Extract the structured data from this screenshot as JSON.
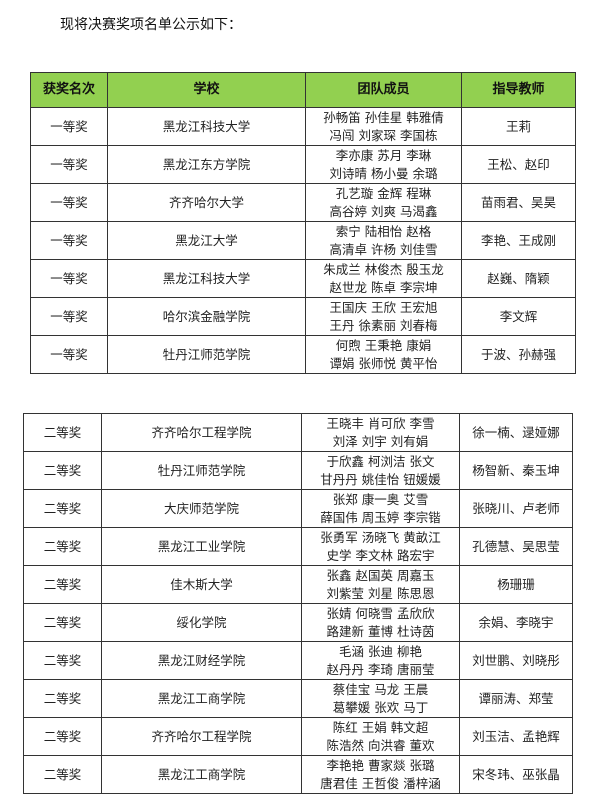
{
  "intro": "现将决赛奖项名单公示如下：",
  "headers": [
    "获奖名次",
    "学校",
    "团队成员",
    "指导教师"
  ],
  "table1": [
    {
      "rank": "一等奖",
      "school": "黑龙江科技大学",
      "members": [
        "孙畅笛 孙佳星 韩雅倩",
        "冯闯 刘家琛 李国栋"
      ],
      "advisor": "王莉"
    },
    {
      "rank": "一等奖",
      "school": "黑龙江东方学院",
      "members": [
        "李亦康 苏月 李琳",
        "刘诗晴 杨小曼 余璐"
      ],
      "advisor": "王松、赵印"
    },
    {
      "rank": "一等奖",
      "school": "齐齐哈尔大学",
      "members": [
        "孔艺璇 金辉 程琳",
        "高谷婷 刘爽 马渴鑫"
      ],
      "advisor": "苗雨君、吴昊"
    },
    {
      "rank": "一等奖",
      "school": "黑龙江大学",
      "members": [
        "索宁 陆相怡 赵格",
        "高清卓 许杨 刘佳雪"
      ],
      "advisor": "李艳、王成刚"
    },
    {
      "rank": "一等奖",
      "school": "黑龙江科技大学",
      "members": [
        "朱成兰 林俊杰 殷玉龙",
        "赵世龙 陈卓 李宗坤"
      ],
      "advisor": "赵巍、隋颖"
    },
    {
      "rank": "一等奖",
      "school": "哈尔滨金融学院",
      "members": [
        "王国庆 王欣 王宏旭",
        "王丹 徐素丽 刘春梅"
      ],
      "advisor": "李文辉"
    },
    {
      "rank": "一等奖",
      "school": "牡丹江师范学院",
      "members": [
        "何煦 王秉艳 康娟",
        "谭娟 张师悦 黄平怡"
      ],
      "advisor": "于波、孙赫强"
    }
  ],
  "table2": [
    {
      "rank": "二等奖",
      "school": "齐齐哈尔工程学院",
      "members": [
        "王晓丰 肖可欣 李雪",
        "刘泽 刘宇 刘有娟"
      ],
      "advisor": "徐一楠、逯娅娜"
    },
    {
      "rank": "二等奖",
      "school": "牡丹江师范学院",
      "members": [
        "于欣鑫 柯浏洁 张文",
        "甘丹丹 姚佳怡 钮媛媛"
      ],
      "advisor": "杨智新、秦玉坤"
    },
    {
      "rank": "二等奖",
      "school": "大庆师范学院",
      "members": [
        "张郑 康一奥 艾雪",
        "薛国伟 周玉婷 李宗锴"
      ],
      "advisor": "张晓川、卢老师"
    },
    {
      "rank": "二等奖",
      "school": "黑龙江工业学院",
      "members": [
        "张勇军 汤晓飞 黄畝江",
        "史学 李文林 路宏宇"
      ],
      "advisor": "孔德慧、吴思莹"
    },
    {
      "rank": "二等奖",
      "school": "佳木斯大学",
      "members": [
        "张鑫 赵国英 周嘉玉",
        "刘紫莹 刘星 陈思恩"
      ],
      "advisor": "杨珊珊"
    },
    {
      "rank": "二等奖",
      "school": "绥化学院",
      "members": [
        "张婧 何晓雪 孟欣欣",
        "路建新 董博 杜诗茵"
      ],
      "advisor": "余娟、李晓宇"
    },
    {
      "rank": "二等奖",
      "school": "黑龙江财经学院",
      "members": [
        "毛涵 张迪 柳艳",
        "赵丹丹 李琦 唐丽莹"
      ],
      "advisor": "刘世鹏、刘晓彤"
    },
    {
      "rank": "二等奖",
      "school": "黑龙江工商学院",
      "members": [
        "蔡佳宝 马龙 王晨",
        "葛攀媛 张欢 马丁"
      ],
      "advisor": "谭丽涛、郑莹"
    },
    {
      "rank": "二等奖",
      "school": "齐齐哈尔工程学院",
      "members": [
        "陈红 王娟 韩文超",
        "陈浩然 向洪睿 董欢"
      ],
      "advisor": "刘玉洁、孟艳辉"
    },
    {
      "rank": "二等奖",
      "school": "黑龙江工商学院",
      "members": [
        "李艳艳 曹家燚 张璐",
        "唐君佳 王哲俊 潘梓涵"
      ],
      "advisor": "宋冬玮、巫张晶"
    }
  ]
}
